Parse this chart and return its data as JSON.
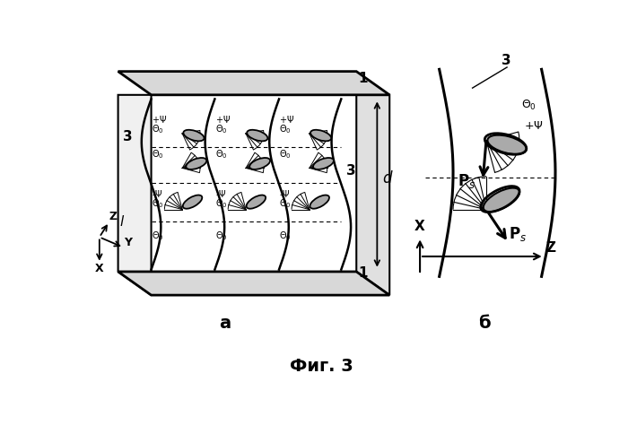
{
  "title": "Фиг. 3",
  "label_a": "а",
  "label_b": "б",
  "bg_color": "#ffffff",
  "line_color": "#000000",
  "fill_color": "#aaaaaa",
  "fill_color_light": "#cccccc"
}
